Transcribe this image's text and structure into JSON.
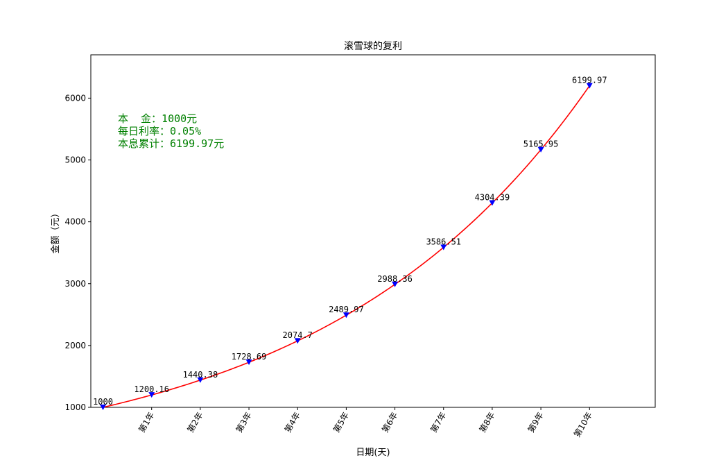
{
  "chart_data": {
    "type": "line",
    "title": "滚雪球的复利",
    "xlabel": "日期(天)",
    "ylabel": "金额（元）",
    "categories": [
      "",
      "第1年",
      "第2年",
      "第3年",
      "第4年",
      "第5年",
      "第6年",
      "第7年",
      "第8年",
      "第9年",
      "第10年"
    ],
    "values": [
      1000,
      1200.16,
      1440.38,
      1728.69,
      2074.7,
      2489.97,
      2988.36,
      3586.51,
      4304.39,
      5165.95,
      6199.97
    ],
    "value_labels": [
      "1000",
      "1200.16",
      "1440.38",
      "1728.69",
      "2074.7",
      "2489.97",
      "2988.36",
      "3586.51",
      "4304.39",
      "5165.95",
      "6199.97"
    ],
    "yticks": [
      1000,
      2000,
      3000,
      4000,
      5000,
      6000
    ],
    "ylim": [
      1000,
      6700
    ],
    "xlim": [
      -0.25,
      11.35
    ],
    "grid": false,
    "line_color": "#ff0000",
    "marker_color": "#0000ff",
    "marker": "triangle-down",
    "annotations": {
      "color": "#008000",
      "lines": [
        "本  金：1000元",
        "每日利率：0.05%",
        "本息累计：6199.97元"
      ]
    }
  }
}
